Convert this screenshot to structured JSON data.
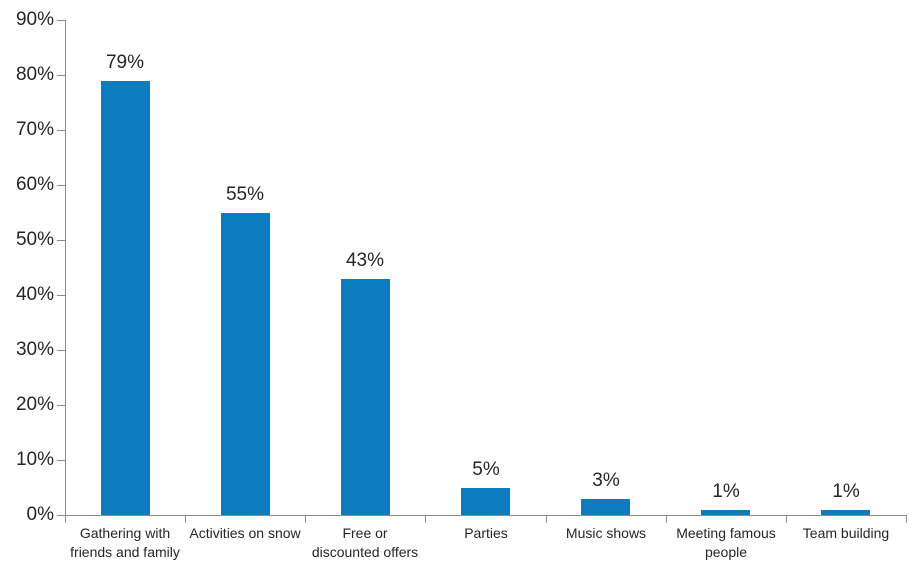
{
  "chart_data": {
    "type": "bar",
    "title": "",
    "xlabel": "",
    "ylabel": "",
    "categories": [
      "Gathering with friends and family",
      "Activities on snow",
      "Free or discounted offers",
      "Parties",
      "Music shows",
      "Meeting famous people",
      "Team building"
    ],
    "category_label_lines": [
      [
        "Gathering with",
        "friends and family"
      ],
      [
        "Activities on snow"
      ],
      [
        "Free or",
        "discounted offers"
      ],
      [
        "Parties"
      ],
      [
        "Music shows"
      ],
      [
        "Meeting famous",
        "people"
      ],
      [
        "Team building"
      ]
    ],
    "values": [
      79,
      55,
      43,
      5,
      3,
      1,
      1
    ],
    "value_labels": [
      "79%",
      "55%",
      "43%",
      "5%",
      "3%",
      "1%",
      "1%"
    ],
    "y_ticks": [
      0,
      10,
      20,
      30,
      40,
      50,
      60,
      70,
      80,
      90
    ],
    "y_tick_labels": [
      "0%",
      "10%",
      "20%",
      "30%",
      "40%",
      "50%",
      "60%",
      "70%",
      "80%",
      "90%"
    ],
    "ylim": [
      0,
      90
    ],
    "grid": false,
    "legend": false,
    "bar_color": "#0d7cbf",
    "axis_color": "#8c8c8c",
    "text_color": "#262626"
  }
}
